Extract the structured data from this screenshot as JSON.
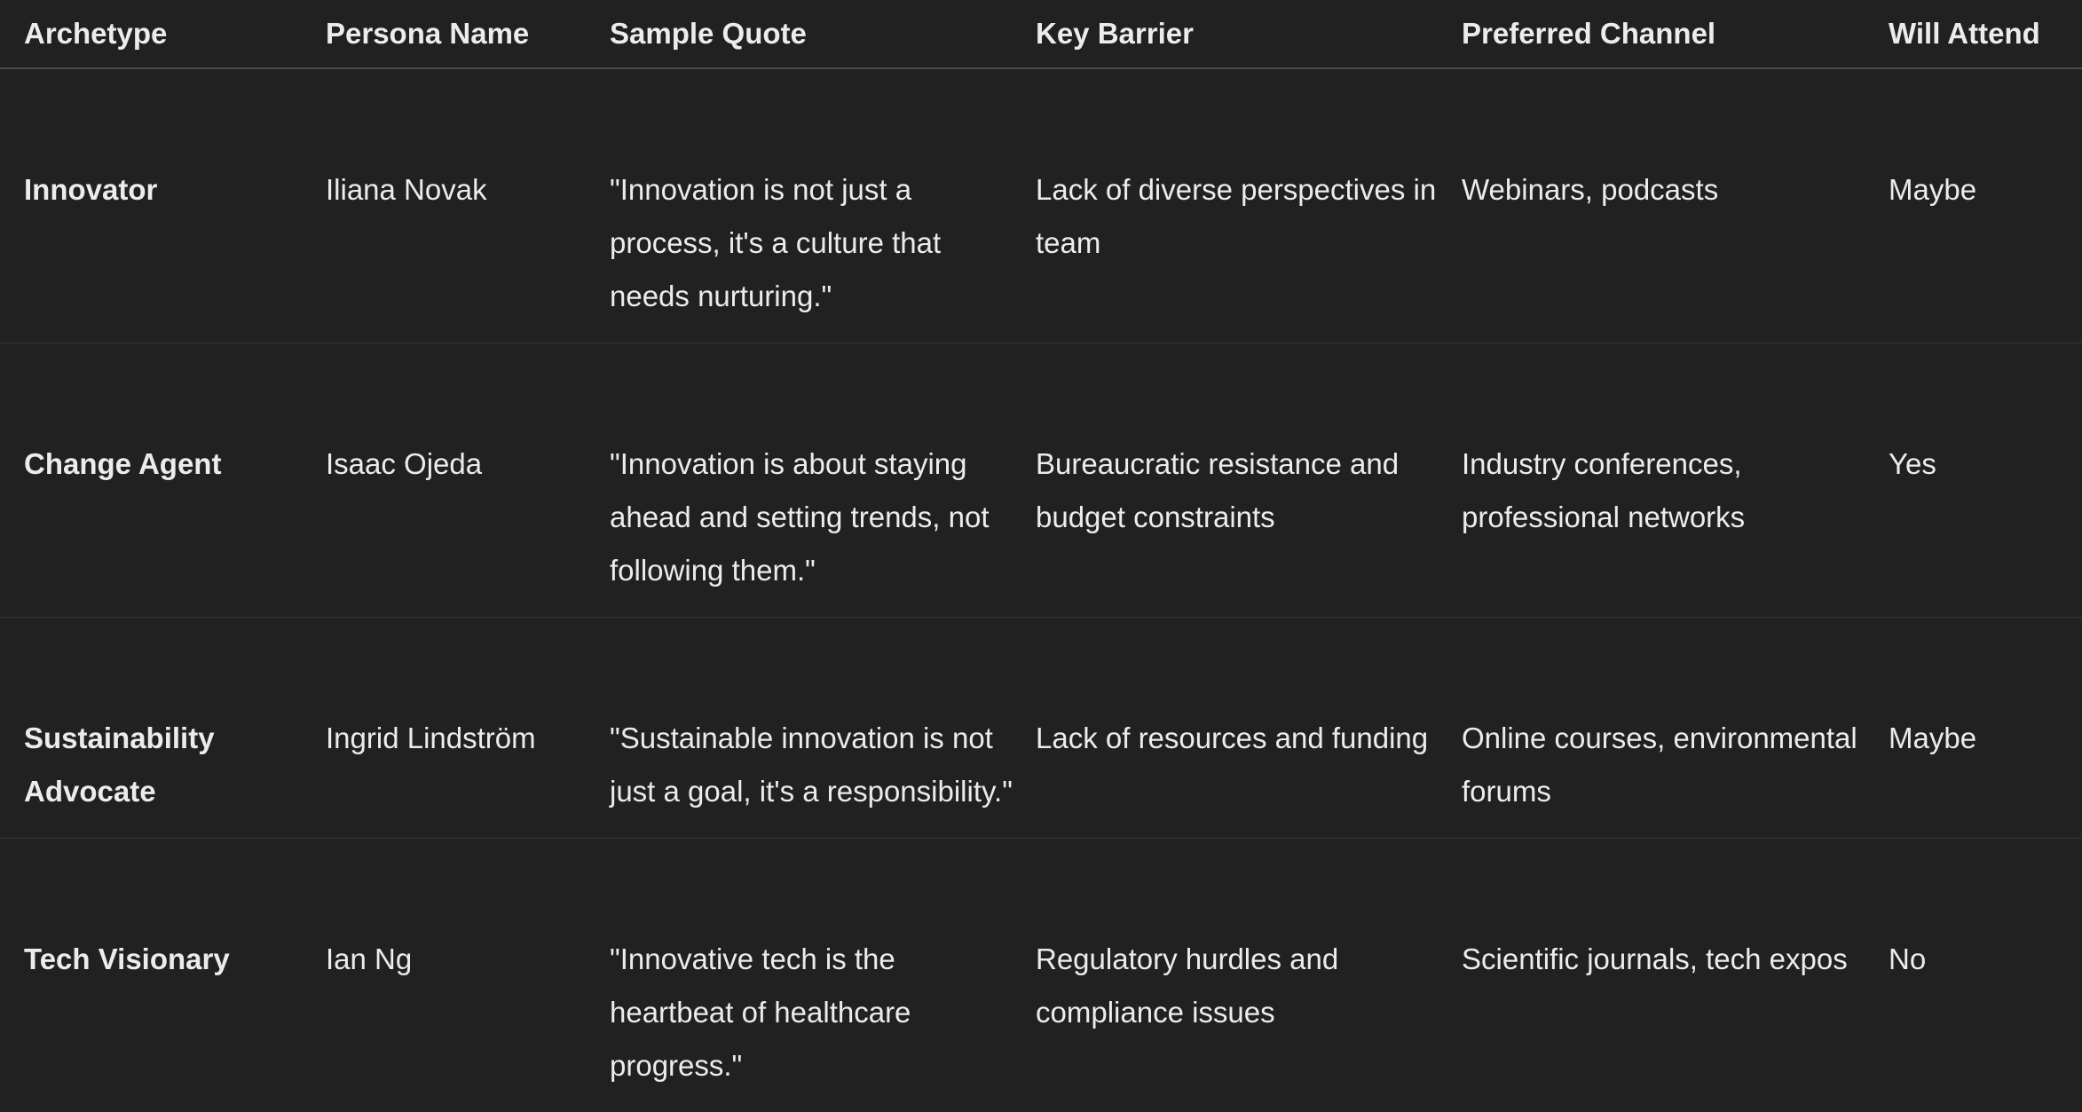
{
  "table": {
    "headers": [
      "Archetype",
      "Persona Name",
      "Sample Quote",
      "Key Barrier",
      "Preferred Channel",
      "Will Attend"
    ],
    "rows": [
      {
        "archetype": "Innovator",
        "persona": "Iliana Novak",
        "quote": "\"Innovation is not just a process, it's a culture that needs nurturing.\"",
        "barrier": "Lack of diverse perspectives in team",
        "channel": "Webinars, podcasts",
        "attend": "Maybe"
      },
      {
        "archetype": "Change Agent",
        "persona": "Isaac Ojeda",
        "quote": "\"Innovation is about staying ahead and setting trends, not following them.\"",
        "barrier": "Bureaucratic resistance and budget constraints",
        "channel": "Industry conferences, professional networks",
        "attend": "Yes"
      },
      {
        "archetype": "Sustainability Advocate",
        "persona": "Ingrid Lindström",
        "quote": "\"Sustainable innovation is not just a goal, it's a responsibility.\"",
        "barrier": "Lack of resources and funding",
        "channel": "Online courses, environmental forums",
        "attend": "Maybe"
      },
      {
        "archetype": "Tech Visionary",
        "persona": "Ian Ng",
        "quote": "\"Innovative tech is the heartbeat of healthcare progress.\"",
        "barrier": "Regulatory hurdles and compliance issues",
        "channel": "Scientific journals, tech expos",
        "attend": "No"
      }
    ]
  }
}
